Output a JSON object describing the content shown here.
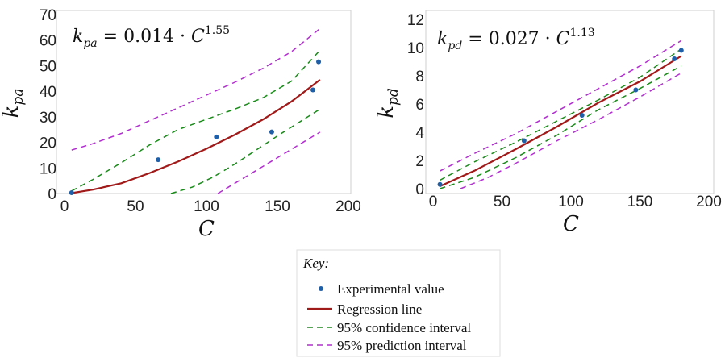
{
  "colors": {
    "experimental": "#1f5fa8",
    "regression": "#a11a1a",
    "confidence": "#1a8a1a",
    "prediction": "#b22fd0"
  },
  "legend": {
    "title": "Key:",
    "items": [
      {
        "label": "Experimental value",
        "style": "point",
        "color_key": "experimental"
      },
      {
        "label": "Regression line",
        "style": "solid",
        "color_key": "regression"
      },
      {
        "label": "95% confidence interval",
        "style": "dashed",
        "color_key": "confidence"
      },
      {
        "label": "95% prediction interval",
        "style": "dashed",
        "color_key": "prediction"
      }
    ]
  },
  "chart_data": [
    {
      "type": "line",
      "equation": {
        "lhs_base": "k",
        "lhs_sub": "pa",
        "rhs": " = 0.014 · ",
        "var": "C",
        "exponent": "1.55"
      },
      "xlabel": "C",
      "ylabel_base": "k",
      "ylabel_sub": "pa",
      "xlim": [
        0,
        200
      ],
      "ylim": [
        0,
        70
      ],
      "xticks": [
        0,
        50,
        100,
        150,
        200
      ],
      "yticks": [
        0,
        10,
        20,
        30,
        40,
        50,
        60,
        70
      ],
      "grid": false,
      "points": [
        {
          "x": 5,
          "y": 0.3
        },
        {
          "x": 66,
          "y": 13.2
        },
        {
          "x": 107,
          "y": 22.1
        },
        {
          "x": 146,
          "y": 24.1
        },
        {
          "x": 175,
          "y": 40.5
        },
        {
          "x": 179,
          "y": 51.5
        }
      ],
      "series": [
        {
          "role": "regression",
          "x": [
            5,
            20,
            40,
            60,
            80,
            100,
            120,
            140,
            160,
            180
          ],
          "y": [
            0.2,
            1.5,
            4.0,
            8.0,
            12.5,
            17.5,
            23.0,
            29.0,
            36.0,
            44.5
          ]
        },
        {
          "role": "ci_upper",
          "x": [
            5,
            20,
            40,
            60,
            80,
            100,
            120,
            140,
            160,
            180
          ],
          "y": [
            1.0,
            5.5,
            12.0,
            19.0,
            25.0,
            29.0,
            33.0,
            37.5,
            44.0,
            56.0
          ]
        },
        {
          "role": "ci_lower",
          "x": [
            75,
            90,
            105,
            120,
            135,
            150,
            160,
            170,
            180
          ],
          "y": [
            0,
            2.5,
            6.5,
            11.5,
            17.0,
            22.5,
            26.0,
            29.5,
            33.0
          ]
        },
        {
          "role": "pi_upper",
          "x": [
            5,
            20,
            40,
            60,
            80,
            100,
            120,
            140,
            160,
            180
          ],
          "y": [
            17.0,
            19.5,
            23.5,
            28.5,
            33.5,
            38.5,
            43.5,
            49.0,
            55.5,
            64.5
          ]
        },
        {
          "role": "pi_lower",
          "x": [
            108,
            120,
            135,
            150,
            165,
            180
          ],
          "y": [
            0,
            4.0,
            9.0,
            14.0,
            19.0,
            24.0
          ]
        }
      ]
    },
    {
      "type": "line",
      "equation": {
        "lhs_base": "k",
        "lhs_sub": "pd",
        "rhs": " = 0.027 · ",
        "var": "C",
        "exponent": "1.13"
      },
      "xlabel": "C",
      "ylabel_base": "k",
      "ylabel_sub": "pd",
      "xlim": [
        0,
        200
      ],
      "ylim": [
        0,
        12
      ],
      "xticks": [
        0,
        50,
        100,
        150,
        200
      ],
      "yticks": [
        0,
        2,
        4,
        6,
        8,
        10,
        12
      ],
      "grid": false,
      "points": [
        {
          "x": 5,
          "y": 0.3
        },
        {
          "x": 66,
          "y": 3.4
        },
        {
          "x": 108,
          "y": 5.2
        },
        {
          "x": 147,
          "y": 7.0
        },
        {
          "x": 175,
          "y": 9.2
        },
        {
          "x": 180,
          "y": 9.8
        }
      ],
      "series": [
        {
          "role": "regression",
          "x": [
            5,
            30,
            60,
            90,
            120,
            150,
            180
          ],
          "y": [
            0.17,
            1.27,
            2.8,
            4.4,
            6.1,
            7.6,
            9.4
          ]
        },
        {
          "role": "ci_upper",
          "x": [
            5,
            30,
            60,
            90,
            120,
            150,
            180
          ],
          "y": [
            0.6,
            1.9,
            3.3,
            4.8,
            6.3,
            7.9,
            9.9
          ]
        },
        {
          "role": "ci_lower",
          "x": [
            5,
            30,
            60,
            90,
            120,
            150,
            180
          ],
          "y": [
            0.0,
            0.8,
            2.2,
            3.8,
            5.6,
            7.1,
            8.7
          ]
        },
        {
          "role": "pi_upper",
          "x": [
            5,
            30,
            60,
            90,
            120,
            150,
            180
          ],
          "y": [
            1.25,
            2.5,
            3.9,
            5.5,
            7.1,
            8.7,
            10.5
          ]
        },
        {
          "role": "pi_lower",
          "x": [
            20,
            40,
            60,
            90,
            120,
            150,
            180
          ],
          "y": [
            0.0,
            0.8,
            1.8,
            3.4,
            4.9,
            6.5,
            8.2
          ]
        }
      ]
    }
  ]
}
